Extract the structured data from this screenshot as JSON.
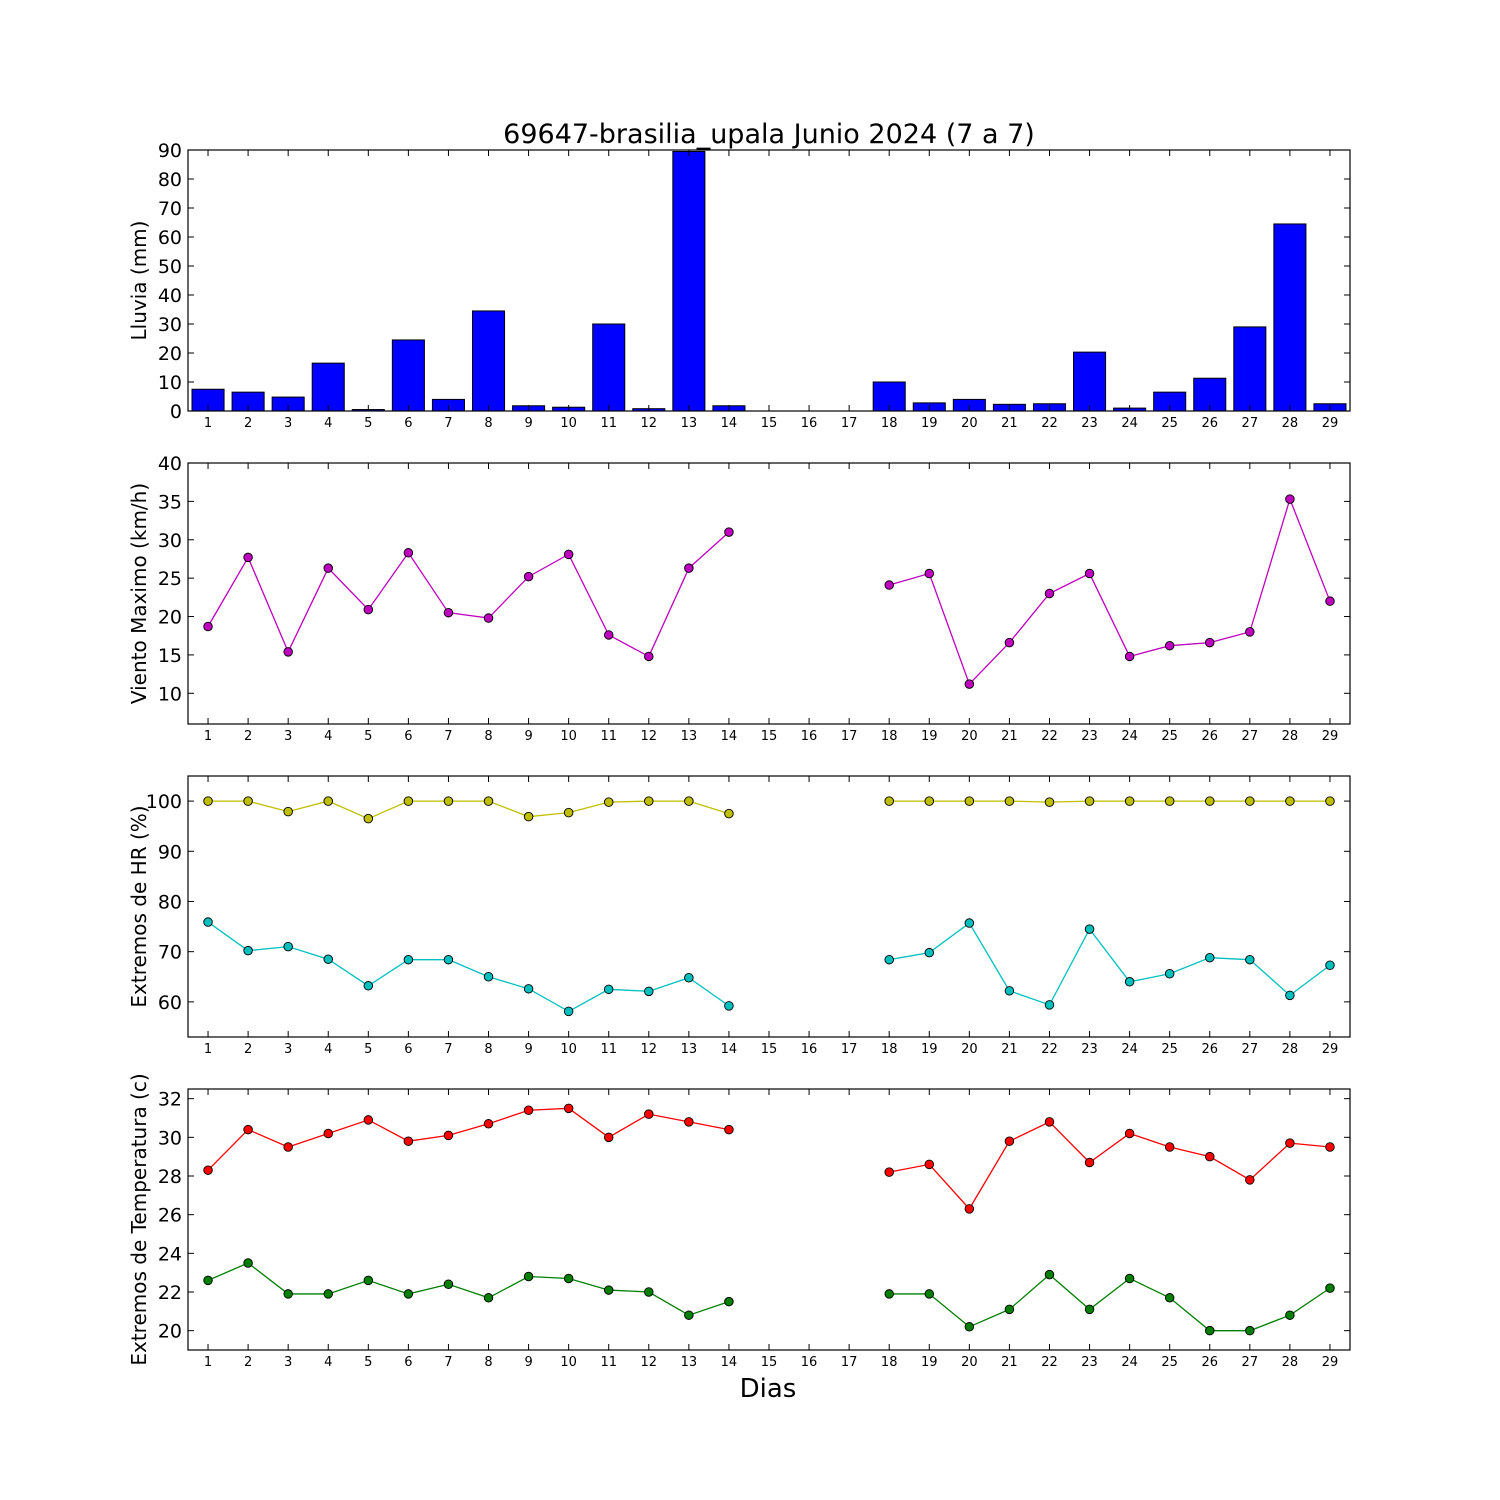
{
  "title": "69647-brasilia_upala Junio 2024  (7 a 7)",
  "xlabel": "Dias",
  "chart_data": [
    {
      "type": "bar",
      "ylabel": "Lluvia (mm)",
      "ylim": [
        0,
        90
      ],
      "yticks": [
        0,
        10,
        20,
        30,
        40,
        50,
        60,
        70,
        80,
        90
      ],
      "x": [
        1,
        2,
        3,
        4,
        5,
        6,
        7,
        8,
        9,
        10,
        11,
        12,
        13,
        14,
        15,
        16,
        17,
        18,
        19,
        20,
        21,
        22,
        23,
        24,
        25,
        26,
        27,
        28,
        29
      ],
      "series": [
        {
          "color": "#0000ff",
          "values": [
            7.5,
            6.5,
            4.8,
            16.5,
            0.5,
            24.5,
            4.0,
            34.5,
            1.8,
            1.3,
            30.0,
            0.8,
            89.5,
            1.8,
            0,
            0,
            0,
            10.0,
            2.8,
            4.0,
            2.3,
            2.5,
            20.3,
            1.0,
            6.5,
            11.3,
            29.0,
            64.5,
            2.5
          ]
        }
      ]
    },
    {
      "type": "line",
      "ylabel": "Viento Maximo (km/h)",
      "ylim": [
        6,
        40
      ],
      "yticks": [
        10,
        15,
        20,
        25,
        30,
        35,
        40
      ],
      "x": [
        1,
        2,
        3,
        4,
        5,
        6,
        7,
        8,
        9,
        10,
        11,
        12,
        13,
        14,
        15,
        16,
        17,
        18,
        19,
        20,
        21,
        22,
        23,
        24,
        25,
        26,
        27,
        28,
        29
      ],
      "series": [
        {
          "color": "#bf00bf",
          "values": [
            18.7,
            27.7,
            15.4,
            26.3,
            20.9,
            28.3,
            20.5,
            19.8,
            25.2,
            28.1,
            17.6,
            14.8,
            26.3,
            31.0,
            null,
            null,
            null,
            24.1,
            25.6,
            11.2,
            16.6,
            23.0,
            25.6,
            14.8,
            16.2,
            16.6,
            18.0,
            35.3,
            22.0
          ]
        }
      ]
    },
    {
      "type": "line",
      "ylabel": "Extremos de HR (%)",
      "ylim": [
        53,
        105
      ],
      "yticks": [
        60,
        70,
        80,
        90,
        100
      ],
      "x": [
        1,
        2,
        3,
        4,
        5,
        6,
        7,
        8,
        9,
        10,
        11,
        12,
        13,
        14,
        15,
        16,
        17,
        18,
        19,
        20,
        21,
        22,
        23,
        24,
        25,
        26,
        27,
        28,
        29
      ],
      "series": [
        {
          "color": "#bfbf00",
          "values": [
            100,
            100,
            97.9,
            100,
            96.5,
            100,
            100,
            100,
            96.9,
            97.7,
            99.8,
            100,
            100,
            97.5,
            null,
            null,
            null,
            100,
            100,
            100,
            100,
            99.8,
            100,
            100,
            100,
            100,
            100,
            100,
            100
          ]
        },
        {
          "color": "#00bfbf",
          "values": [
            75.9,
            70.2,
            71.0,
            68.5,
            63.2,
            68.4,
            68.4,
            65.0,
            62.6,
            58.1,
            62.5,
            62.1,
            64.8,
            59.2,
            null,
            null,
            null,
            68.4,
            69.8,
            75.7,
            62.2,
            59.4,
            74.5,
            64.0,
            65.6,
            68.8,
            68.4,
            61.3,
            67.3
          ]
        }
      ]
    },
    {
      "type": "line",
      "ylabel": "Extremos de Temperatura (c)",
      "ylim": [
        19,
        32.5
      ],
      "yticks": [
        20,
        22,
        24,
        26,
        28,
        30,
        32
      ],
      "x": [
        1,
        2,
        3,
        4,
        5,
        6,
        7,
        8,
        9,
        10,
        11,
        12,
        13,
        14,
        15,
        16,
        17,
        18,
        19,
        20,
        21,
        22,
        23,
        24,
        25,
        26,
        27,
        28,
        29
      ],
      "series": [
        {
          "color": "#ff0000",
          "values": [
            28.3,
            30.4,
            29.5,
            30.2,
            30.9,
            29.8,
            30.1,
            30.7,
            31.4,
            31.5,
            30.0,
            31.2,
            30.8,
            30.4,
            null,
            null,
            null,
            28.2,
            28.6,
            26.3,
            29.8,
            30.8,
            28.7,
            30.2,
            29.5,
            29.0,
            27.8,
            29.7,
            29.5
          ]
        },
        {
          "color": "#007f00",
          "values": [
            22.6,
            23.5,
            21.9,
            21.9,
            22.6,
            21.9,
            22.4,
            21.7,
            22.8,
            22.7,
            22.1,
            22.0,
            20.8,
            21.5,
            null,
            null,
            null,
            21.9,
            21.9,
            20.2,
            21.1,
            22.9,
            21.1,
            22.7,
            21.7,
            20.0,
            20.0,
            20.8,
            22.2
          ]
        }
      ]
    }
  ]
}
